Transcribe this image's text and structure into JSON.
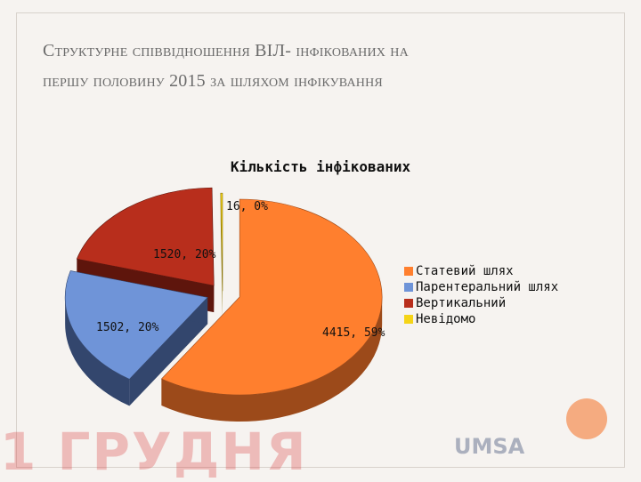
{
  "slide": {
    "title_line1": "Структурне співвідношення ВІЛ- інфікованих на",
    "title_line2": "першу половину 2015 за шляхом інфікування",
    "watermark": "1 ГРУДНЯ",
    "logo": "UMSA"
  },
  "chart_data": {
    "type": "pie",
    "title": "Кількість інфікованих",
    "slices": [
      {
        "label": "Статевий шлях",
        "value": 4415,
        "percent": 59,
        "data_label": "4415, 59%",
        "color": "#ff7f2e",
        "side_color": "#9c4a1a"
      },
      {
        "label": "Парентеральний шлях",
        "value": 1502,
        "percent": 20,
        "data_label": "1502, 20%",
        "color": "#6f94d8",
        "side_color": "#33466d"
      },
      {
        "label": "Вертикальний",
        "value": 1520,
        "percent": 20,
        "data_label": "1520, 20%",
        "color": "#b82e1c",
        "side_color": "#5e150c"
      },
      {
        "label": "Невідомо",
        "value": 16,
        "percent": 0,
        "data_label": "16, 0%",
        "color": "#f5d417",
        "side_color": "#8a7508"
      }
    ],
    "legend_placement": "right"
  }
}
